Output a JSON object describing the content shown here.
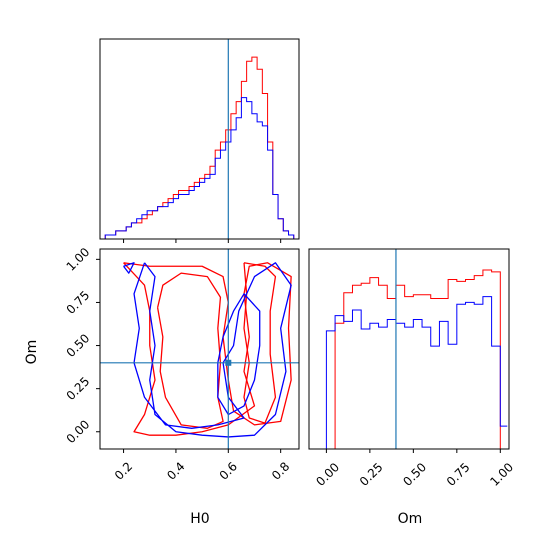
{
  "chart_data": [
    {
      "type": "histogram",
      "panel": "H0 marginal (top-left)",
      "xlim": [
        0.11,
        0.87
      ],
      "truth": 0.6,
      "series": [
        {
          "color": "#ff0000",
          "bins": [
            0.13,
            0.17,
            0.19,
            0.21,
            0.23,
            0.25,
            0.27,
            0.29,
            0.31,
            0.33,
            0.35,
            0.37,
            0.39,
            0.41,
            0.43,
            0.45,
            0.47,
            0.49,
            0.51,
            0.53,
            0.55,
            0.57,
            0.59,
            0.61,
            0.63,
            0.65,
            0.67,
            0.69,
            0.71,
            0.73,
            0.75,
            0.77,
            0.79,
            0.81,
            0.83,
            0.85
          ],
          "heights": [
            1,
            2,
            2,
            3,
            4,
            4,
            5,
            6,
            7,
            8,
            9,
            10,
            11,
            12,
            12,
            13,
            14,
            15,
            16,
            18,
            22,
            24,
            27,
            31,
            34,
            39,
            44,
            45,
            42,
            36,
            24,
            11,
            5,
            2,
            1
          ]
        },
        {
          "color": "#0000ff",
          "bins": [
            0.13,
            0.17,
            0.19,
            0.21,
            0.23,
            0.25,
            0.27,
            0.29,
            0.31,
            0.33,
            0.35,
            0.37,
            0.39,
            0.41,
            0.43,
            0.45,
            0.47,
            0.49,
            0.51,
            0.53,
            0.55,
            0.57,
            0.59,
            0.61,
            0.63,
            0.65,
            0.67,
            0.69,
            0.71,
            0.73,
            0.75,
            0.77,
            0.79,
            0.81,
            0.83,
            0.85
          ],
          "heights": [
            1,
            2,
            2,
            3,
            4,
            5,
            6,
            7,
            7,
            8,
            8,
            9,
            10,
            11,
            11,
            12,
            13,
            14,
            15,
            16,
            20,
            22,
            24,
            27,
            30,
            35,
            34,
            31,
            29,
            28,
            22,
            11,
            5,
            2,
            1
          ]
        }
      ]
    },
    {
      "type": "contour",
      "panel": "Om vs H0 (bottom-left)",
      "xlabel": "H0",
      "ylabel": "Om",
      "xlim": [
        0.11,
        0.87
      ],
      "ylim": [
        -0.1,
        1.06
      ],
      "xticks": [
        "0.2",
        "0.4",
        "0.6",
        "0.8"
      ],
      "yticks": [
        "0.00",
        "0.25",
        "0.50",
        "0.75",
        "1.00"
      ],
      "truth": {
        "H0": 0.6,
        "Om": 0.4
      },
      "series": [
        {
          "color": "#ff0000",
          "contours": [
            [
              [
                0.2,
                0.98
              ],
              [
                0.3,
                0.96
              ],
              [
                0.4,
                0.96
              ],
              [
                0.5,
                0.96
              ],
              [
                0.58,
                0.9
              ],
              [
                0.6,
                0.75
              ],
              [
                0.58,
                0.55
              ],
              [
                0.6,
                0.3
              ],
              [
                0.62,
                0.12
              ],
              [
                0.7,
                0.04
              ],
              [
                0.8,
                0.06
              ],
              [
                0.84,
                0.3
              ],
              [
                0.83,
                0.6
              ],
              [
                0.84,
                0.9
              ],
              [
                0.75,
                0.98
              ],
              [
                0.68,
                0.96
              ],
              [
                0.66,
                0.8
              ],
              [
                0.68,
                0.55
              ],
              [
                0.66,
                0.35
              ],
              [
                0.7,
                0.15
              ],
              [
                0.6,
                0.04
              ],
              [
                0.5,
                0.0
              ],
              [
                0.4,
                -0.02
              ],
              [
                0.3,
                -0.02
              ],
              [
                0.24,
                0.0
              ],
              [
                0.28,
                0.1
              ],
              [
                0.32,
                0.3
              ],
              [
                0.3,
                0.5
              ],
              [
                0.3,
                0.7
              ],
              [
                0.28,
                0.85
              ],
              [
                0.2,
                0.98
              ]
            ],
            [
              [
                0.66,
                0.98
              ],
              [
                0.74,
                0.96
              ],
              [
                0.78,
                0.9
              ],
              [
                0.76,
                0.7
              ],
              [
                0.76,
                0.45
              ],
              [
                0.78,
                0.2
              ],
              [
                0.74,
                0.05
              ],
              [
                0.68,
                0.08
              ],
              [
                0.66,
                0.2
              ],
              [
                0.68,
                0.4
              ],
              [
                0.66,
                0.6
              ],
              [
                0.67,
                0.8
              ],
              [
                0.66,
                0.98
              ]
            ],
            [
              [
                0.33,
                0.72
              ],
              [
                0.35,
                0.55
              ],
              [
                0.34,
                0.35
              ],
              [
                0.36,
                0.2
              ],
              [
                0.42,
                0.04
              ],
              [
                0.52,
                0.02
              ],
              [
                0.58,
                0.06
              ],
              [
                0.56,
                0.2
              ],
              [
                0.57,
                0.4
              ],
              [
                0.56,
                0.6
              ],
              [
                0.57,
                0.78
              ],
              [
                0.52,
                0.9
              ],
              [
                0.42,
                0.92
              ],
              [
                0.35,
                0.85
              ],
              [
                0.33,
                0.72
              ]
            ]
          ]
        },
        {
          "color": "#0000ff",
          "contours": [
            [
              [
                0.2,
                0.96
              ],
              [
                0.24,
                0.98
              ],
              [
                0.22,
                0.92
              ],
              [
                0.2,
                0.96
              ]
            ],
            [
              [
                0.28,
                0.98
              ],
              [
                0.32,
                0.9
              ],
              [
                0.3,
                0.7
              ],
              [
                0.32,
                0.5
              ],
              [
                0.3,
                0.3
              ],
              [
                0.32,
                0.1
              ],
              [
                0.4,
                0.0
              ],
              [
                0.5,
                -0.02
              ],
              [
                0.6,
                -0.03
              ],
              [
                0.7,
                -0.02
              ],
              [
                0.78,
                0.1
              ],
              [
                0.82,
                0.35
              ],
              [
                0.8,
                0.6
              ],
              [
                0.84,
                0.85
              ],
              [
                0.78,
                0.98
              ],
              [
                0.7,
                0.9
              ],
              [
                0.64,
                0.7
              ],
              [
                0.62,
                0.5
              ],
              [
                0.58,
                0.4
              ],
              [
                0.6,
                0.2
              ],
              [
                0.66,
                0.08
              ],
              [
                0.56,
                0.04
              ],
              [
                0.46,
                0.02
              ],
              [
                0.36,
                0.04
              ],
              [
                0.28,
                0.2
              ],
              [
                0.24,
                0.4
              ],
              [
                0.26,
                0.6
              ],
              [
                0.24,
                0.8
              ],
              [
                0.28,
                0.98
              ]
            ],
            [
              [
                0.58,
                0.55
              ],
              [
                0.62,
                0.7
              ],
              [
                0.66,
                0.8
              ],
              [
                0.72,
                0.7
              ],
              [
                0.72,
                0.5
              ],
              [
                0.7,
                0.3
              ],
              [
                0.66,
                0.15
              ],
              [
                0.6,
                0.1
              ],
              [
                0.56,
                0.2
              ],
              [
                0.56,
                0.4
              ],
              [
                0.58,
                0.55
              ]
            ]
          ]
        }
      ]
    },
    {
      "type": "histogram",
      "panel": "Om marginal (bottom-right)",
      "xlabel": "Om",
      "xlim": [
        -0.1,
        1.05
      ],
      "xticks": [
        "0.00",
        "0.25",
        "0.50",
        "0.75",
        "1.00"
      ],
      "truth": 0.4,
      "series": [
        {
          "color": "#ff0000",
          "bins": [
            0.0,
            0.05,
            0.1,
            0.15,
            0.2,
            0.25,
            0.3,
            0.35,
            0.4,
            0.45,
            0.5,
            0.55,
            0.6,
            0.65,
            0.7,
            0.75,
            0.8,
            0.85,
            0.9,
            0.95,
            1.0
          ],
          "heights": [
            0.0,
            0.66,
            0.82,
            0.86,
            0.87,
            0.9,
            0.86,
            0.79,
            0.86,
            0.8,
            0.81,
            0.81,
            0.79,
            0.79,
            0.89,
            0.88,
            0.89,
            0.91,
            0.94,
            0.93,
            0.0
          ]
        },
        {
          "color": "#0000ff",
          "bins": [
            -0.06,
            -0.0,
            0.05,
            0.1,
            0.15,
            0.2,
            0.25,
            0.3,
            0.35,
            0.4,
            0.45,
            0.5,
            0.55,
            0.6,
            0.65,
            0.7,
            0.75,
            0.8,
            0.85,
            0.9,
            0.95,
            1.0,
            1.04
          ],
          "heights": [
            0.0,
            0.62,
            0.7,
            0.67,
            0.73,
            0.63,
            0.66,
            0.64,
            0.68,
            0.66,
            0.64,
            0.68,
            0.64,
            0.54,
            0.67,
            0.55,
            0.76,
            0.77,
            0.76,
            0.8,
            0.54,
            0.12,
            0.12
          ]
        }
      ]
    }
  ]
}
